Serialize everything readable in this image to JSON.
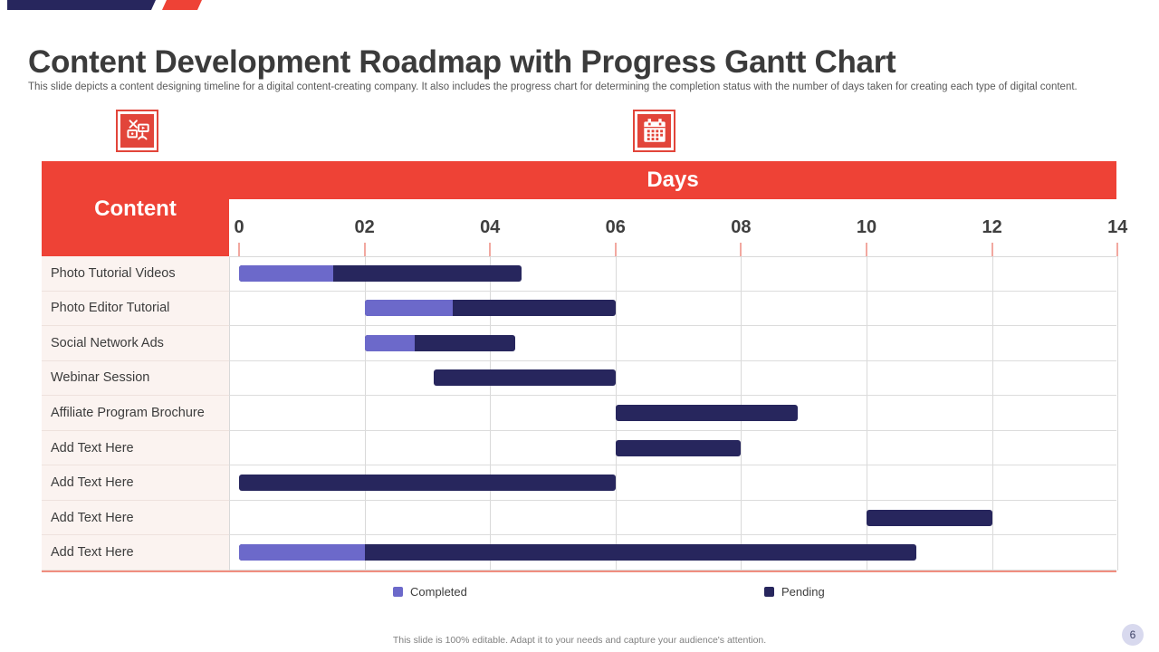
{
  "slide": {
    "title": "Content Development Roadmap with Progress Gantt Chart",
    "subtitle": "This slide depicts a content designing timeline for a digital content-creating company. It also includes the progress chart for determining the completion status with the number of days taken for creating each type of digital content.",
    "footer": "This slide is 100% editable. Adapt it to your needs and capture your audience's attention.",
    "page_number": "6"
  },
  "icons": {
    "left_icon": "content-creation-icon",
    "right_icon": "calendar-icon"
  },
  "table": {
    "content_header": "Content",
    "days_header": "Days"
  },
  "legend": {
    "completed": "Completed",
    "pending": "Pending"
  },
  "colors": {
    "accent_red": "#ee4236",
    "navy": "#27265d",
    "purple": "#6c69ca",
    "label_cell_bg": "#fbf3f0",
    "tick_red": "#f2a8a0",
    "table_bottom_line": "#f08e80"
  },
  "chart_data": {
    "type": "gantt",
    "title": "Days",
    "x_ticks": [
      "0",
      "02",
      "04",
      "06",
      "08",
      "10",
      "12",
      "14"
    ],
    "x_range": [
      0,
      14
    ],
    "grid": true,
    "legend_position": "bottom",
    "colors": {
      "completed": "#6c69ca",
      "pending": "#27265d"
    },
    "tasks": [
      {
        "label": "Photo Tutorial Videos",
        "start": 0,
        "completed_until": 1.5,
        "end": 4.5
      },
      {
        "label": "Photo Editor Tutorial",
        "start": 2,
        "completed_until": 3.4,
        "end": 6
      },
      {
        "label": "Social Network Ads",
        "start": 2,
        "completed_until": 2.8,
        "end": 4.4
      },
      {
        "label": "Webinar Session",
        "start": 3.1,
        "completed_until": null,
        "end": 6
      },
      {
        "label": "Affiliate Program Brochure",
        "start": 6,
        "completed_until": null,
        "end": 8.9
      },
      {
        "label": "Add Text Here",
        "start": 6,
        "completed_until": null,
        "end": 8
      },
      {
        "label": "Add Text Here",
        "start": 0,
        "completed_until": null,
        "end": 6
      },
      {
        "label": "Add Text Here",
        "start": 10,
        "completed_until": null,
        "end": 12
      },
      {
        "label": "Add Text Here",
        "start": 0,
        "completed_until": 2,
        "end": 10.8
      }
    ],
    "legend_entries": [
      {
        "name": "Completed",
        "color": "#6c69ca"
      },
      {
        "name": "Pending",
        "color": "#27265d"
      }
    ]
  }
}
